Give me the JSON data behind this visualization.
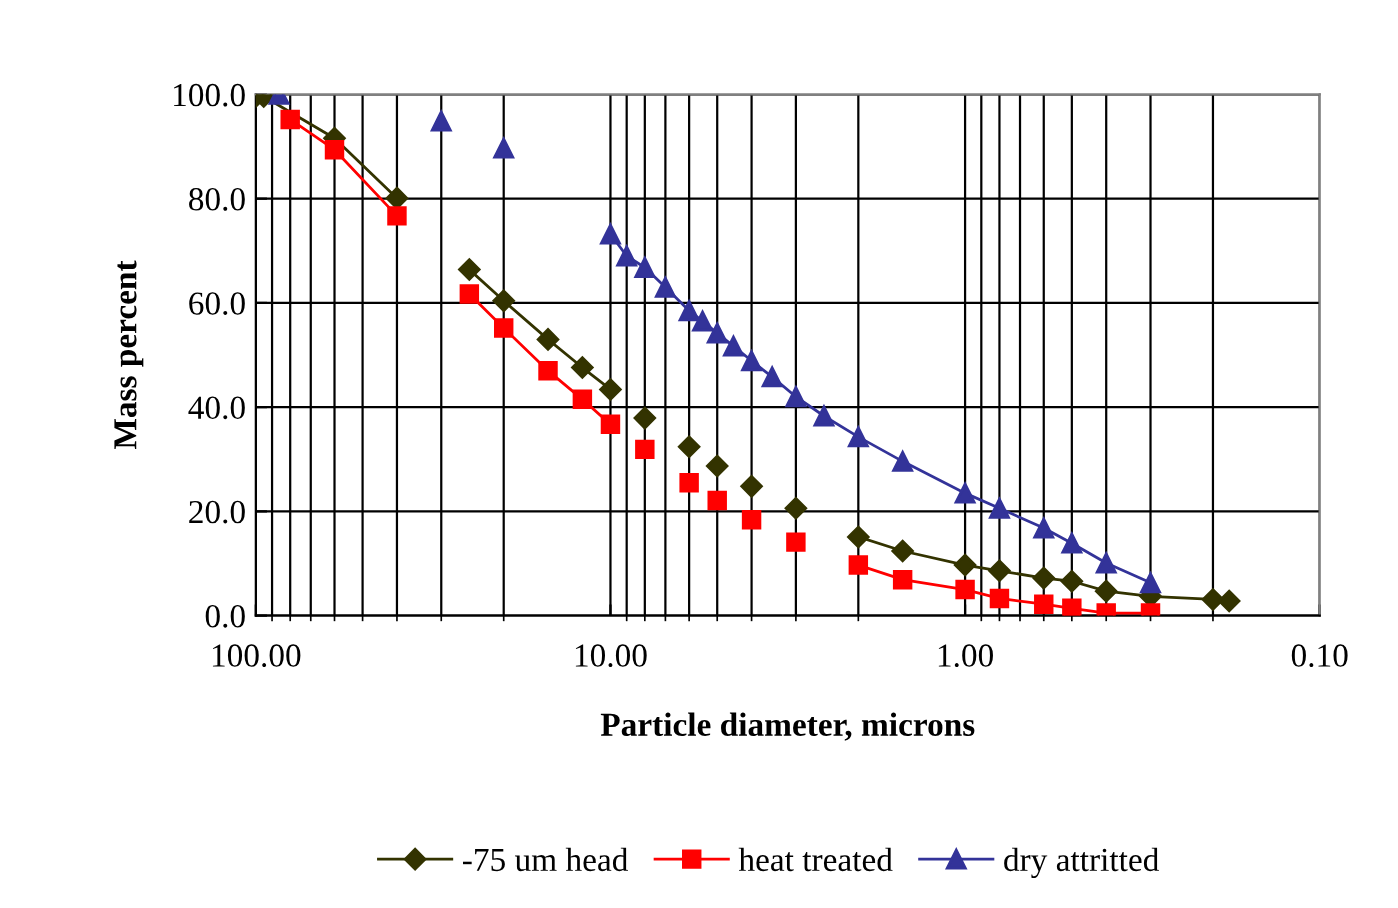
{
  "chart_data": {
    "type": "line",
    "xlabel": "Particle diameter, microns",
    "ylabel": "Mass percent",
    "log": "x",
    "xlim": [
      100,
      0.1
    ],
    "xticks": [
      {
        "value": 100,
        "label": "100.00"
      },
      {
        "value": 10,
        "label": "10.00"
      },
      {
        "value": 1,
        "label": "1.00"
      },
      {
        "value": 0.1,
        "label": "0.10"
      }
    ],
    "ylim": [
      0,
      100
    ],
    "yticks": [
      {
        "value": 0,
        "label": "0.0"
      },
      {
        "value": 20,
        "label": "20.0"
      },
      {
        "value": 40,
        "label": "40.0"
      },
      {
        "value": 60,
        "label": "60.0"
      },
      {
        "value": 80,
        "label": "80.0"
      },
      {
        "value": 100,
        "label": "100.0"
      }
    ],
    "grid": true,
    "legend": "bottom",
    "line_style": "solid",
    "series": [
      {
        "name": "-75 um head",
        "color": "#333300",
        "marker": "diamond",
        "x": [
          100,
          95,
          60,
          40,
          30,
          25,
          20,
          15,
          12,
          10,
          9,
          8,
          7,
          6,
          5.5,
          5,
          4.5,
          4,
          3.5,
          3,
          2.5,
          2,
          1.5,
          1,
          0.8,
          0.6,
          0.5,
          0.4,
          0.3,
          0.2,
          0.18
        ],
        "values": [
          99.6,
          99.6,
          91.6,
          80.1,
          null,
          66.4,
          60.4,
          53,
          47.6,
          43.4,
          null,
          37.9,
          null,
          32.4,
          null,
          28.7,
          null,
          24.8,
          null,
          20.6,
          null,
          15.1,
          12.4,
          9.7,
          8.6,
          7.2,
          6.6,
          4.7,
          3.7,
          3.1,
          2.8
        ]
      },
      {
        "name": "heat treated",
        "color": "#ff0000",
        "marker": "square",
        "x": [
          80,
          60,
          40,
          30,
          25,
          20,
          15,
          12,
          10,
          9,
          8,
          7,
          6,
          5.5,
          5,
          4.5,
          4,
          3.5,
          3,
          2.5,
          2,
          1.5,
          1,
          0.8,
          0.6,
          0.5,
          0.4,
          0.3
        ],
        "values": [
          95.2,
          89.4,
          76.7,
          null,
          61.7,
          55.2,
          47,
          41.5,
          36.7,
          null,
          31.9,
          null,
          25.5,
          null,
          22.1,
          null,
          18.4,
          null,
          14.1,
          null,
          9.7,
          6.9,
          5,
          3.3,
          2.2,
          1.4,
          0.5,
          0.5
        ]
      },
      {
        "name": "dry attritted",
        "color": "#333399",
        "marker": "triangle",
        "x": [
          86,
          50,
          30,
          25,
          20,
          15,
          10,
          9,
          8,
          7,
          6,
          5.5,
          5,
          4.5,
          4,
          3.5,
          3,
          2.5,
          2,
          1.5,
          1,
          0.8,
          0.6,
          0.5,
          0.4,
          0.3
        ],
        "values": [
          100,
          null,
          94.9,
          null,
          89.7,
          null,
          73.2,
          69,
          66.8,
          63,
          58.5,
          56.5,
          54.2,
          51.7,
          48.9,
          45.8,
          42,
          38.3,
          34.3,
          29.6,
          23.5,
          20.6,
          16.8,
          13.9,
          10.1,
          6.3
        ]
      }
    ]
  }
}
